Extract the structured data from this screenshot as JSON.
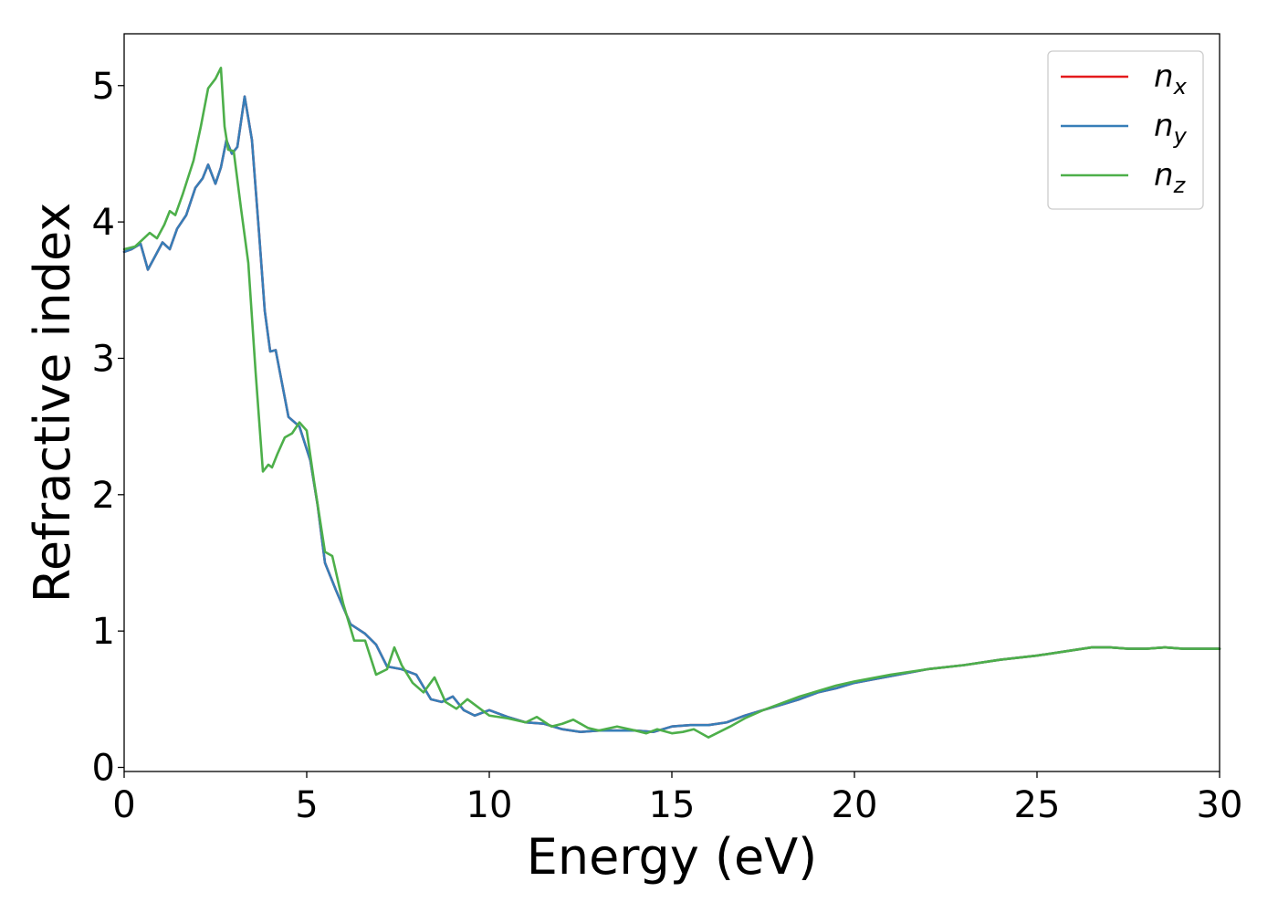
{
  "chart_data": {
    "type": "line",
    "xlabel": "Energy (eV)",
    "ylabel": "Refractive index",
    "xlim": [
      0,
      30
    ],
    "ylim": [
      -0.03,
      5.38
    ],
    "xticks": [
      0,
      5,
      10,
      15,
      20,
      25,
      30
    ],
    "yticks": [
      0,
      1,
      2,
      3,
      4,
      5
    ],
    "grid": false,
    "legend_placement": "top-right",
    "series": [
      {
        "name": "n_x",
        "label_main": "n",
        "label_sub": "x",
        "color": "#e41a1c",
        "x": [
          0,
          0.2,
          0.45,
          0.65,
          0.85,
          1.05,
          1.25,
          1.45,
          1.7,
          1.95,
          2.15,
          2.3,
          2.5,
          2.65,
          2.8,
          2.95,
          3.1,
          3.3,
          3.5,
          3.7,
          3.85,
          4.0,
          4.15,
          4.3,
          4.5,
          4.8,
          5.1,
          5.3,
          5.5,
          5.8,
          6.2,
          6.6,
          6.9,
          7.2,
          7.6,
          8.0,
          8.4,
          8.7,
          9.0,
          9.3,
          9.6,
          10.0,
          10.5,
          11.0,
          11.5,
          12.0,
          12.5,
          13.0,
          13.5,
          14.0,
          14.5,
          15.0,
          15.5,
          16.0,
          16.5,
          17.0,
          17.5,
          18.0,
          18.5,
          19.0,
          19.5,
          20.0,
          21.0,
          22.0,
          23.0,
          24.0,
          25.0,
          26.0,
          26.5,
          27.0,
          27.5,
          28.0,
          28.5,
          29.0,
          29.5,
          30.0
        ],
        "y": [
          3.78,
          3.8,
          3.84,
          3.65,
          3.75,
          3.85,
          3.8,
          3.95,
          4.05,
          4.25,
          4.32,
          4.42,
          4.28,
          4.4,
          4.6,
          4.5,
          4.55,
          4.92,
          4.6,
          3.9,
          3.35,
          3.05,
          3.06,
          2.85,
          2.57,
          2.5,
          2.25,
          1.92,
          1.5,
          1.3,
          1.05,
          0.98,
          0.9,
          0.74,
          0.72,
          0.68,
          0.5,
          0.48,
          0.52,
          0.42,
          0.38,
          0.42,
          0.37,
          0.33,
          0.32,
          0.28,
          0.26,
          0.27,
          0.27,
          0.27,
          0.26,
          0.3,
          0.31,
          0.31,
          0.33,
          0.38,
          0.42,
          0.46,
          0.5,
          0.55,
          0.58,
          0.62,
          0.67,
          0.72,
          0.75,
          0.79,
          0.82,
          0.86,
          0.88,
          0.88,
          0.87,
          0.87,
          0.88,
          0.87,
          0.87,
          0.87
        ]
      },
      {
        "name": "n_y",
        "label_main": "n",
        "label_sub": "y",
        "color": "#377eb8",
        "x": [
          0,
          0.2,
          0.45,
          0.65,
          0.85,
          1.05,
          1.25,
          1.45,
          1.7,
          1.95,
          2.15,
          2.3,
          2.5,
          2.65,
          2.8,
          2.95,
          3.1,
          3.3,
          3.5,
          3.7,
          3.85,
          4.0,
          4.15,
          4.3,
          4.5,
          4.8,
          5.1,
          5.3,
          5.5,
          5.8,
          6.2,
          6.6,
          6.9,
          7.2,
          7.6,
          8.0,
          8.4,
          8.7,
          9.0,
          9.3,
          9.6,
          10.0,
          10.5,
          11.0,
          11.5,
          12.0,
          12.5,
          13.0,
          13.5,
          14.0,
          14.5,
          15.0,
          15.5,
          16.0,
          16.5,
          17.0,
          17.5,
          18.0,
          18.5,
          19.0,
          19.5,
          20.0,
          21.0,
          22.0,
          23.0,
          24.0,
          25.0,
          26.0,
          26.5,
          27.0,
          27.5,
          28.0,
          28.5,
          29.0,
          29.5,
          30.0
        ],
        "y": [
          3.78,
          3.8,
          3.84,
          3.65,
          3.75,
          3.85,
          3.8,
          3.95,
          4.05,
          4.25,
          4.32,
          4.42,
          4.28,
          4.4,
          4.6,
          4.5,
          4.55,
          4.92,
          4.6,
          3.9,
          3.35,
          3.05,
          3.06,
          2.85,
          2.57,
          2.5,
          2.25,
          1.92,
          1.5,
          1.3,
          1.05,
          0.98,
          0.9,
          0.74,
          0.72,
          0.68,
          0.5,
          0.48,
          0.52,
          0.42,
          0.38,
          0.42,
          0.37,
          0.33,
          0.32,
          0.28,
          0.26,
          0.27,
          0.27,
          0.27,
          0.26,
          0.3,
          0.31,
          0.31,
          0.33,
          0.38,
          0.42,
          0.46,
          0.5,
          0.55,
          0.58,
          0.62,
          0.67,
          0.72,
          0.75,
          0.79,
          0.82,
          0.86,
          0.88,
          0.88,
          0.87,
          0.87,
          0.88,
          0.87,
          0.87,
          0.87
        ]
      },
      {
        "name": "n_z",
        "label_main": "n",
        "label_sub": "z",
        "color": "#4daf4a",
        "x": [
          0,
          0.3,
          0.5,
          0.7,
          0.9,
          1.1,
          1.25,
          1.4,
          1.6,
          1.9,
          2.1,
          2.3,
          2.5,
          2.65,
          2.75,
          2.85,
          3.0,
          3.2,
          3.4,
          3.6,
          3.8,
          3.95,
          4.05,
          4.2,
          4.4,
          4.6,
          4.8,
          5.0,
          5.2,
          5.5,
          5.7,
          6.0,
          6.3,
          6.6,
          6.9,
          7.2,
          7.4,
          7.6,
          7.9,
          8.2,
          8.5,
          8.8,
          9.1,
          9.4,
          9.7,
          10.0,
          10.5,
          11.0,
          11.3,
          11.7,
          12.0,
          12.3,
          12.7,
          13.0,
          13.5,
          14.0,
          14.3,
          14.6,
          15.0,
          15.3,
          15.6,
          16.0,
          16.3,
          16.6,
          17.0,
          17.5,
          18.0,
          18.5,
          19.0,
          19.5,
          20.0,
          21.0,
          22.0,
          23.0,
          24.0,
          25.0,
          26.0,
          26.5,
          27.0,
          27.5,
          28.0,
          28.5,
          29.0,
          29.5,
          30.0
        ],
        "y": [
          3.8,
          3.82,
          3.87,
          3.92,
          3.88,
          3.98,
          4.08,
          4.05,
          4.2,
          4.45,
          4.7,
          4.98,
          5.05,
          5.13,
          4.7,
          4.53,
          4.52,
          4.1,
          3.7,
          2.9,
          2.17,
          2.22,
          2.2,
          2.3,
          2.42,
          2.45,
          2.53,
          2.47,
          2.1,
          1.58,
          1.55,
          1.2,
          0.93,
          0.93,
          0.68,
          0.72,
          0.88,
          0.75,
          0.62,
          0.55,
          0.66,
          0.48,
          0.43,
          0.5,
          0.44,
          0.38,
          0.36,
          0.33,
          0.37,
          0.3,
          0.32,
          0.35,
          0.29,
          0.27,
          0.3,
          0.27,
          0.25,
          0.28,
          0.25,
          0.26,
          0.28,
          0.22,
          0.26,
          0.3,
          0.36,
          0.42,
          0.47,
          0.52,
          0.56,
          0.6,
          0.63,
          0.68,
          0.72,
          0.75,
          0.79,
          0.82,
          0.86,
          0.88,
          0.88,
          0.87,
          0.87,
          0.88,
          0.87,
          0.87,
          0.87
        ]
      }
    ]
  }
}
